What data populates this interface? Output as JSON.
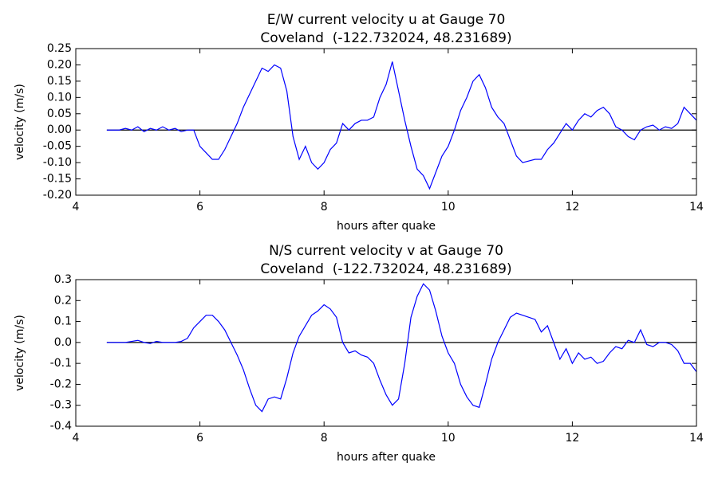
{
  "chart_data": [
    {
      "type": "line",
      "title": [
        "E/W current velocity u at Gauge 70",
        "Coveland  (-122.732024, 48.231689)"
      ],
      "xlabel": "hours after quake",
      "ylabel": "velocity (m/s)",
      "xlim": [
        4,
        14
      ],
      "xticks": [
        4,
        6,
        8,
        10,
        12,
        14
      ],
      "ylim": [
        -0.2,
        0.25
      ],
      "yticks": [
        0.25,
        {
          "value": 0.2,
          "label": "0.20"
        },
        0.15,
        {
          "value": 0.1,
          "label": "0.10"
        },
        0.05,
        {
          "value": 0,
          "label": "0.00"
        },
        -0.05,
        {
          "value": -0.1,
          "label": "-0.10"
        },
        -0.15,
        {
          "value": -0.2,
          "label": "-0.20"
        }
      ],
      "reference_line": {
        "y": 0,
        "x": [
          4.5,
          14
        ],
        "color": "#000000"
      },
      "x": [
        4.5,
        4.6,
        4.7,
        4.8,
        4.9,
        5.0,
        5.1,
        5.2,
        5.3,
        5.4,
        5.5,
        5.6,
        5.7,
        5.8,
        5.9,
        6.0,
        6.1,
        6.2,
        6.3,
        6.4,
        6.5,
        6.6,
        6.7,
        6.8,
        6.9,
        7.0,
        7.1,
        7.2,
        7.3,
        7.4,
        7.5,
        7.6,
        7.7,
        7.8,
        7.9,
        8.0,
        8.1,
        8.2,
        8.3,
        8.4,
        8.5,
        8.6,
        8.7,
        8.8,
        8.9,
        9.0,
        9.1,
        9.2,
        9.3,
        9.4,
        9.5,
        9.6,
        9.7,
        9.8,
        9.9,
        10.0,
        10.1,
        10.2,
        10.3,
        10.4,
        10.5,
        10.6,
        10.7,
        10.8,
        10.9,
        11.0,
        11.1,
        11.2,
        11.3,
        11.4,
        11.5,
        11.6,
        11.7,
        11.8,
        11.9,
        12.0,
        12.1,
        12.2,
        12.3,
        12.4,
        12.5,
        12.6,
        12.7,
        12.8,
        12.9,
        13.0,
        13.1,
        13.2,
        13.3,
        13.4,
        13.5,
        13.6,
        13.7,
        13.8,
        13.9,
        14.0
      ],
      "series": [
        {
          "color": "#0000ff",
          "values": [
            0,
            0,
            0,
            0.005,
            0,
            0.01,
            -0.005,
            0.005,
            0,
            0.01,
            0,
            0.005,
            -0.005,
            0,
            0,
            -0.05,
            -0.07,
            -0.09,
            -0.09,
            -0.06,
            -0.02,
            0.02,
            0.07,
            0.11,
            0.15,
            0.19,
            0.18,
            0.2,
            0.19,
            0.12,
            -0.02,
            -0.09,
            -0.05,
            -0.1,
            -0.12,
            -0.1,
            -0.06,
            -0.04,
            0.02,
            0,
            0.02,
            0.03,
            0.03,
            0.04,
            0.1,
            0.14,
            0.21,
            0.12,
            0.03,
            -0.05,
            -0.12,
            -0.14,
            -0.18,
            -0.13,
            -0.08,
            -0.05,
            0,
            0.06,
            0.1,
            0.15,
            0.17,
            0.13,
            0.07,
            0.04,
            0.02,
            -0.03,
            -0.08,
            -0.1,
            -0.095,
            -0.09,
            -0.09,
            -0.06,
            -0.04,
            -0.01,
            0.02,
            0,
            0.03,
            0.05,
            0.04,
            0.06,
            0.07,
            0.05,
            0.01,
            0,
            -0.02,
            -0.03,
            0,
            0.01,
            0.015,
            0,
            0.01,
            0.005,
            0.02,
            0.07,
            0.05,
            0.03
          ]
        }
      ]
    },
    {
      "type": "line",
      "title": [
        "N/S current velocity v at Gauge 70",
        "Coveland  (-122.732024, 48.231689)"
      ],
      "xlabel": "hours after quake",
      "ylabel": "velocity (m/s)",
      "xlim": [
        4,
        14
      ],
      "xticks": [
        4,
        6,
        8,
        10,
        12,
        14
      ],
      "ylim": [
        -0.4,
        0.3
      ],
      "yticks": [
        0.3,
        0.2,
        0.1,
        {
          "value": 0,
          "label": "0.0"
        },
        -0.1,
        -0.2,
        -0.3,
        -0.4
      ],
      "reference_line": {
        "y": 0,
        "x": [
          4.5,
          14
        ],
        "color": "#000000"
      },
      "x": [
        4.5,
        4.6,
        4.7,
        4.8,
        4.9,
        5.0,
        5.1,
        5.2,
        5.3,
        5.4,
        5.5,
        5.6,
        5.7,
        5.8,
        5.9,
        6.0,
        6.1,
        6.2,
        6.3,
        6.4,
        6.5,
        6.6,
        6.7,
        6.8,
        6.9,
        7.0,
        7.1,
        7.2,
        7.3,
        7.4,
        7.5,
        7.6,
        7.7,
        7.8,
        7.9,
        8.0,
        8.1,
        8.2,
        8.3,
        8.4,
        8.5,
        8.6,
        8.7,
        8.8,
        8.9,
        9.0,
        9.1,
        9.2,
        9.3,
        9.4,
        9.5,
        9.6,
        9.7,
        9.8,
        9.9,
        10.0,
        10.1,
        10.2,
        10.3,
        10.4,
        10.5,
        10.6,
        10.7,
        10.8,
        10.9,
        11.0,
        11.1,
        11.2,
        11.3,
        11.4,
        11.5,
        11.6,
        11.7,
        11.8,
        11.9,
        12.0,
        12.1,
        12.2,
        12.3,
        12.4,
        12.5,
        12.6,
        12.7,
        12.8,
        12.9,
        13.0,
        13.1,
        13.2,
        13.3,
        13.4,
        13.5,
        13.6,
        13.7,
        13.8,
        13.9,
        14.0
      ],
      "series": [
        {
          "color": "#0000ff",
          "values": [
            0,
            0,
            0,
            0,
            0.005,
            0.01,
            0,
            -0.005,
            0.005,
            0,
            0,
            0,
            0.005,
            0.02,
            0.07,
            0.1,
            0.13,
            0.13,
            0.1,
            0.06,
            0,
            -0.06,
            -0.13,
            -0.22,
            -0.3,
            -0.33,
            -0.27,
            -0.26,
            -0.27,
            -0.17,
            -0.05,
            0.03,
            0.08,
            0.13,
            0.15,
            0.18,
            0.16,
            0.12,
            0,
            -0.05,
            -0.04,
            -0.06,
            -0.07,
            -0.1,
            -0.18,
            -0.25,
            -0.3,
            -0.27,
            -0.1,
            0.12,
            0.22,
            0.28,
            0.25,
            0.15,
            0.03,
            -0.05,
            -0.1,
            -0.2,
            -0.26,
            -0.3,
            -0.31,
            -0.2,
            -0.08,
            0,
            0.06,
            0.12,
            0.14,
            0.13,
            0.12,
            0.11,
            0.05,
            0.08,
            0,
            -0.08,
            -0.03,
            -0.1,
            -0.05,
            -0.08,
            -0.07,
            -0.1,
            -0.09,
            -0.05,
            -0.02,
            -0.03,
            0.01,
            0,
            0.06,
            -0.01,
            -0.02,
            0,
            0,
            -0.01,
            -0.04,
            -0.1,
            -0.1,
            -0.14
          ]
        }
      ]
    }
  ]
}
